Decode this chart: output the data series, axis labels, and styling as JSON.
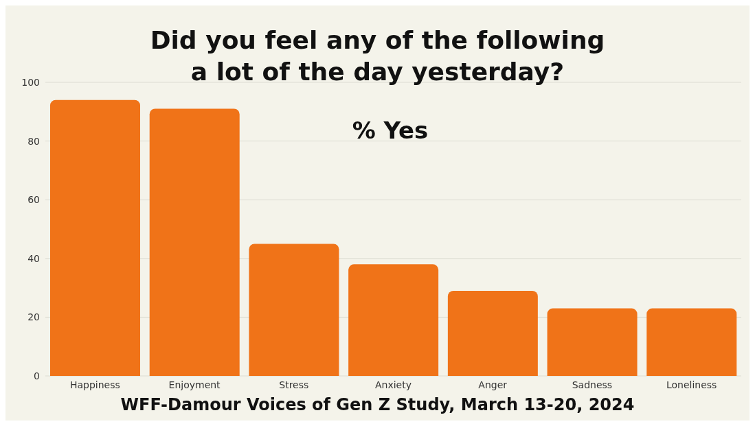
{
  "chart_data": {
    "type": "bar",
    "title": "Did you feel any of the following\na lot of the day yesterday?",
    "subtitle": "% Yes",
    "annotations": [
      "WFF-Damour Voices of Gen Z Study, March 13-20, 2024"
    ],
    "categories": [
      "Happiness",
      "Enjoyment",
      "Stress",
      "Anxiety",
      "Anger",
      "Sadness",
      "Loneliness"
    ],
    "values": [
      94,
      91,
      45,
      38,
      29,
      23,
      23
    ],
    "color": "#f07318",
    "ylim": [
      0,
      100
    ],
    "yticks": [
      0,
      20,
      40,
      60,
      80,
      100
    ],
    "grid": "y"
  }
}
